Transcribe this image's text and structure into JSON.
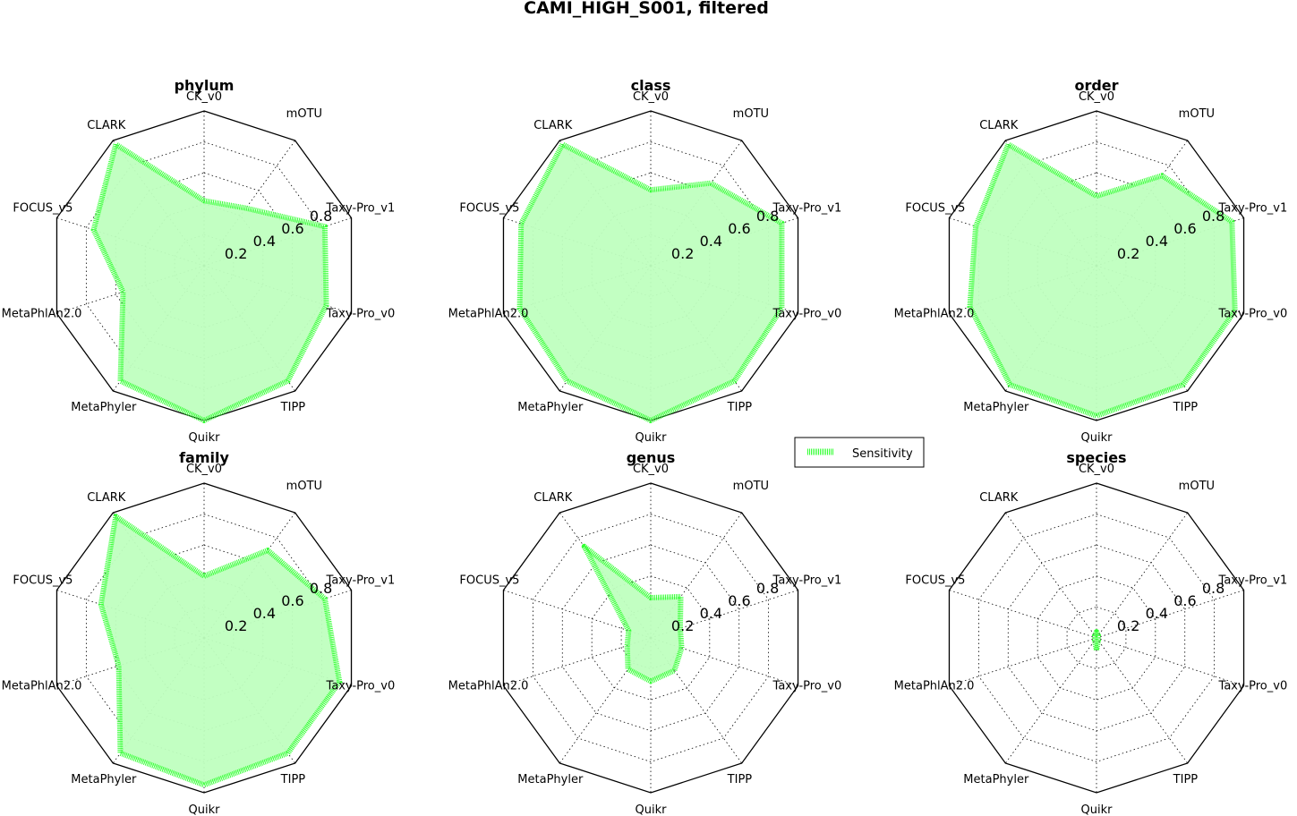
{
  "figure": {
    "title": "CAMI_HIGH_S001, filtered",
    "legend": {
      "label": "Sensitivity",
      "color": "#33ff33",
      "fill": "#bfffbf"
    }
  },
  "chart_data": [
    {
      "type": "radar",
      "title": "phylum",
      "axes": [
        "CK_v0",
        "mOTU",
        "Taxy-Pro_v1",
        "Taxy-Pro_v0",
        "TIPP",
        "Quikr",
        "MetaPhyler",
        "MetaPhlAn2.0",
        "FOCUS_v5",
        "CLARK"
      ],
      "rticks": [
        0.2,
        0.4,
        0.6,
        0.8
      ],
      "rlim": [
        0,
        1
      ],
      "grid": true,
      "series": [
        {
          "name": "Sensitivity",
          "values": [
            0.42,
            0.46,
            0.82,
            0.83,
            0.92,
            1.0,
            0.92,
            0.55,
            0.75,
            0.97
          ]
        }
      ]
    },
    {
      "type": "radar",
      "title": "class",
      "axes": [
        "CK_v0",
        "mOTU",
        "Taxy-Pro_v1",
        "Taxy-Pro_v0",
        "TIPP",
        "Quikr",
        "MetaPhyler",
        "MetaPhlAn2.0",
        "FOCUS_v5",
        "CLARK"
      ],
      "rticks": [
        0.2,
        0.4,
        0.6,
        0.8
      ],
      "rlim": [
        0,
        1
      ],
      "grid": true,
      "series": [
        {
          "name": "Sensitivity",
          "values": [
            0.49,
            0.66,
            0.89,
            0.89,
            0.92,
            1.0,
            0.92,
            0.89,
            0.88,
            0.97
          ]
        }
      ]
    },
    {
      "type": "radar",
      "title": "order",
      "axes": [
        "CK_v0",
        "mOTU",
        "Taxy-Pro_v1",
        "Taxy-Pro_v0",
        "TIPP",
        "Quikr",
        "MetaPhyler",
        "MetaPhlAn2.0",
        "FOCUS_v5",
        "CLARK"
      ],
      "rticks": [
        0.2,
        0.4,
        0.6,
        0.8
      ],
      "rlim": [
        0,
        1
      ],
      "grid": true,
      "series": [
        {
          "name": "Sensitivity",
          "values": [
            0.45,
            0.72,
            0.92,
            0.94,
            0.95,
            0.97,
            0.95,
            0.86,
            0.82,
            0.97
          ]
        }
      ]
    },
    {
      "type": "radar",
      "title": "family",
      "axes": [
        "CK_v0",
        "mOTU",
        "Taxy-Pro_v1",
        "Taxy-Pro_v0",
        "TIPP",
        "Quikr",
        "MetaPhyler",
        "MetaPhlAn2.0",
        "FOCUS_v5",
        "CLARK"
      ],
      "rticks": [
        0.2,
        0.4,
        0.6,
        0.8
      ],
      "rlim": [
        0,
        1
      ],
      "grid": true,
      "series": [
        {
          "name": "Sensitivity",
          "values": [
            0.4,
            0.7,
            0.82,
            0.92,
            0.92,
            0.95,
            0.92,
            0.58,
            0.7,
            0.97
          ]
        }
      ]
    },
    {
      "type": "radar",
      "title": "genus",
      "axes": [
        "CK_v0",
        "mOTU",
        "Taxy-Pro_v1",
        "Taxy-Pro_v0",
        "TIPP",
        "Quikr",
        "MetaPhyler",
        "MetaPhlAn2.0",
        "FOCUS_v5",
        "CLARK"
      ],
      "rticks": [
        0.2,
        0.4,
        0.6,
        0.8
      ],
      "rlim": [
        0,
        1
      ],
      "grid": true,
      "series": [
        {
          "name": "Sensitivity",
          "values": [
            0.26,
            0.33,
            0.2,
            0.21,
            0.26,
            0.28,
            0.25,
            0.16,
            0.15,
            0.73
          ]
        }
      ]
    },
    {
      "type": "radar",
      "title": "species",
      "axes": [
        "CK_v0",
        "mOTU",
        "Taxy-Pro_v1",
        "Taxy-Pro_v0",
        "TIPP",
        "Quikr",
        "MetaPhyler",
        "MetaPhlAn2.0",
        "FOCUS_v5",
        "CLARK"
      ],
      "rticks": [
        0.2,
        0.4,
        0.6,
        0.8
      ],
      "rlim": [
        0,
        1
      ],
      "grid": true,
      "series": [
        {
          "name": "Sensitivity",
          "values": [
            0.04,
            0.02,
            0.01,
            0.01,
            0.02,
            0.08,
            0.02,
            0.01,
            0.01,
            0.02
          ]
        }
      ]
    }
  ]
}
